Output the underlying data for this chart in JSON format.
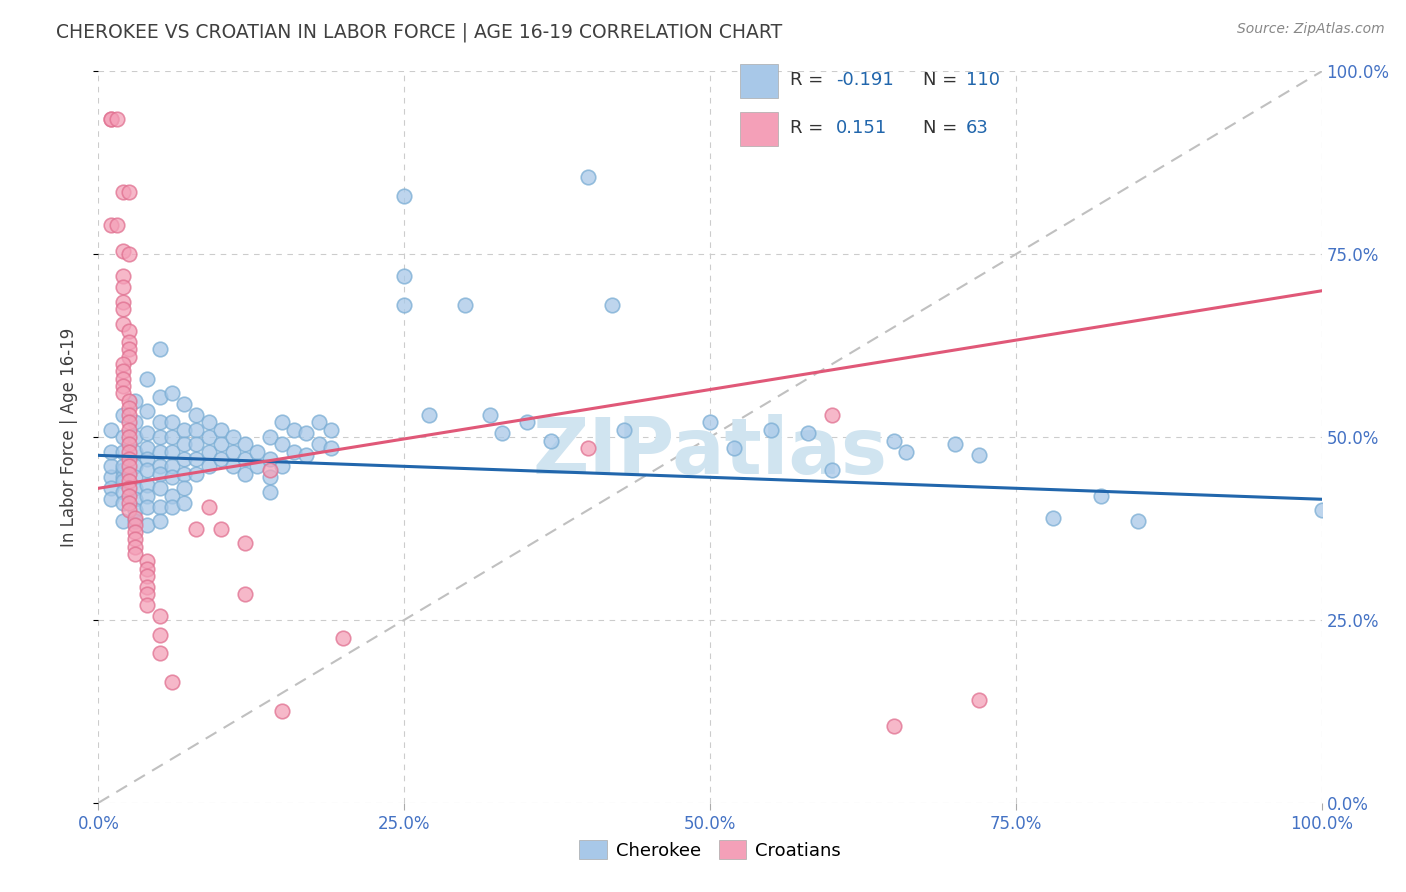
{
  "title": "CHEROKEE VS CROATIAN IN LABOR FORCE | AGE 16-19 CORRELATION CHART",
  "source": "Source: ZipAtlas.com",
  "ylabel": "In Labor Force | Age 16-19",
  "xlim": [
    0.0,
    1.0
  ],
  "ylim": [
    0.0,
    1.0
  ],
  "xticks": [
    0.0,
    0.25,
    0.5,
    0.75,
    1.0
  ],
  "yticks": [
    0.0,
    0.25,
    0.5,
    0.75,
    1.0
  ],
  "cherokee_color": "#a8c8e8",
  "cherokee_edge": "#7aadd4",
  "croatian_color": "#f4a0b8",
  "croatian_edge": "#e07090",
  "cherokee_line_color": "#2166ac",
  "croatian_line_color": "#e05878",
  "diag_color": "#c0c0c0",
  "cherokee_R": -0.191,
  "cherokee_N": 110,
  "croatian_R": 0.151,
  "croatian_N": 63,
  "legend_label_cherokee": "Cherokee",
  "legend_label_croatian": "Croatians",
  "watermark": "ZIPatlas",
  "watermark_color": "#d0e4f0",
  "background_color": "#ffffff",
  "grid_color": "#cccccc",
  "tick_color": "#4472c4",
  "title_color": "#404040",
  "source_color": "#888888",
  "legend_text_color": "#333333",
  "legend_value_color": "#2166ac",
  "cherokee_line_x": [
    0.0,
    1.0
  ],
  "cherokee_line_y": [
    0.475,
    0.415
  ],
  "croatian_line_x": [
    0.0,
    1.0
  ],
  "croatian_line_y": [
    0.43,
    0.7
  ],
  "cherokee_scatter": [
    [
      0.01,
      0.445
    ],
    [
      0.01,
      0.46
    ],
    [
      0.01,
      0.48
    ],
    [
      0.01,
      0.51
    ],
    [
      0.01,
      0.43
    ],
    [
      0.01,
      0.415
    ],
    [
      0.02,
      0.455
    ],
    [
      0.02,
      0.5
    ],
    [
      0.02,
      0.445
    ],
    [
      0.02,
      0.53
    ],
    [
      0.02,
      0.48
    ],
    [
      0.02,
      0.46
    ],
    [
      0.02,
      0.44
    ],
    [
      0.02,
      0.425
    ],
    [
      0.02,
      0.41
    ],
    [
      0.02,
      0.385
    ],
    [
      0.03,
      0.52
    ],
    [
      0.03,
      0.5
    ],
    [
      0.03,
      0.48
    ],
    [
      0.03,
      0.46
    ],
    [
      0.03,
      0.445
    ],
    [
      0.03,
      0.43
    ],
    [
      0.03,
      0.415
    ],
    [
      0.03,
      0.4
    ],
    [
      0.03,
      0.385
    ],
    [
      0.03,
      0.55
    ],
    [
      0.04,
      0.58
    ],
    [
      0.04,
      0.535
    ],
    [
      0.04,
      0.505
    ],
    [
      0.04,
      0.485
    ],
    [
      0.04,
      0.47
    ],
    [
      0.04,
      0.455
    ],
    [
      0.04,
      0.435
    ],
    [
      0.04,
      0.42
    ],
    [
      0.04,
      0.405
    ],
    [
      0.04,
      0.38
    ],
    [
      0.05,
      0.62
    ],
    [
      0.05,
      0.555
    ],
    [
      0.05,
      0.52
    ],
    [
      0.05,
      0.5
    ],
    [
      0.05,
      0.48
    ],
    [
      0.05,
      0.46
    ],
    [
      0.05,
      0.45
    ],
    [
      0.05,
      0.43
    ],
    [
      0.05,
      0.405
    ],
    [
      0.05,
      0.385
    ],
    [
      0.06,
      0.56
    ],
    [
      0.06,
      0.52
    ],
    [
      0.06,
      0.5
    ],
    [
      0.06,
      0.48
    ],
    [
      0.06,
      0.46
    ],
    [
      0.06,
      0.445
    ],
    [
      0.06,
      0.42
    ],
    [
      0.06,
      0.405
    ],
    [
      0.07,
      0.545
    ],
    [
      0.07,
      0.51
    ],
    [
      0.07,
      0.49
    ],
    [
      0.07,
      0.47
    ],
    [
      0.07,
      0.45
    ],
    [
      0.07,
      0.43
    ],
    [
      0.07,
      0.41
    ],
    [
      0.08,
      0.53
    ],
    [
      0.08,
      0.51
    ],
    [
      0.08,
      0.49
    ],
    [
      0.08,
      0.47
    ],
    [
      0.08,
      0.45
    ],
    [
      0.09,
      0.52
    ],
    [
      0.09,
      0.5
    ],
    [
      0.09,
      0.48
    ],
    [
      0.09,
      0.46
    ],
    [
      0.1,
      0.51
    ],
    [
      0.1,
      0.49
    ],
    [
      0.1,
      0.47
    ],
    [
      0.11,
      0.5
    ],
    [
      0.11,
      0.48
    ],
    [
      0.11,
      0.46
    ],
    [
      0.12,
      0.49
    ],
    [
      0.12,
      0.47
    ],
    [
      0.12,
      0.45
    ],
    [
      0.13,
      0.48
    ],
    [
      0.13,
      0.46
    ],
    [
      0.14,
      0.5
    ],
    [
      0.14,
      0.47
    ],
    [
      0.14,
      0.445
    ],
    [
      0.14,
      0.425
    ],
    [
      0.15,
      0.52
    ],
    [
      0.15,
      0.49
    ],
    [
      0.15,
      0.46
    ],
    [
      0.16,
      0.51
    ],
    [
      0.16,
      0.48
    ],
    [
      0.17,
      0.505
    ],
    [
      0.17,
      0.475
    ],
    [
      0.18,
      0.52
    ],
    [
      0.18,
      0.49
    ],
    [
      0.19,
      0.51
    ],
    [
      0.19,
      0.485
    ],
    [
      0.25,
      0.83
    ],
    [
      0.25,
      0.72
    ],
    [
      0.25,
      0.68
    ],
    [
      0.27,
      0.53
    ],
    [
      0.3,
      0.68
    ],
    [
      0.32,
      0.53
    ],
    [
      0.33,
      0.505
    ],
    [
      0.35,
      0.52
    ],
    [
      0.37,
      0.495
    ],
    [
      0.4,
      0.855
    ],
    [
      0.42,
      0.68
    ],
    [
      0.43,
      0.51
    ],
    [
      0.5,
      0.52
    ],
    [
      0.52,
      0.485
    ],
    [
      0.55,
      0.51
    ],
    [
      0.58,
      0.505
    ],
    [
      0.6,
      0.455
    ],
    [
      0.65,
      0.495
    ],
    [
      0.66,
      0.48
    ],
    [
      0.7,
      0.49
    ],
    [
      0.72,
      0.475
    ],
    [
      0.78,
      0.39
    ],
    [
      0.82,
      0.42
    ],
    [
      0.85,
      0.385
    ],
    [
      1.0,
      0.4
    ]
  ],
  "croatian_scatter": [
    [
      0.01,
      0.935
    ],
    [
      0.01,
      0.935
    ],
    [
      0.015,
      0.935
    ],
    [
      0.02,
      0.835
    ],
    [
      0.025,
      0.835
    ],
    [
      0.01,
      0.79
    ],
    [
      0.015,
      0.79
    ],
    [
      0.02,
      0.755
    ],
    [
      0.025,
      0.75
    ],
    [
      0.02,
      0.72
    ],
    [
      0.02,
      0.705
    ],
    [
      0.02,
      0.685
    ],
    [
      0.02,
      0.675
    ],
    [
      0.02,
      0.655
    ],
    [
      0.025,
      0.645
    ],
    [
      0.025,
      0.63
    ],
    [
      0.025,
      0.62
    ],
    [
      0.025,
      0.61
    ],
    [
      0.02,
      0.6
    ],
    [
      0.02,
      0.59
    ],
    [
      0.02,
      0.58
    ],
    [
      0.02,
      0.57
    ],
    [
      0.02,
      0.56
    ],
    [
      0.025,
      0.55
    ],
    [
      0.025,
      0.54
    ],
    [
      0.025,
      0.53
    ],
    [
      0.025,
      0.52
    ],
    [
      0.025,
      0.51
    ],
    [
      0.025,
      0.5
    ],
    [
      0.025,
      0.49
    ],
    [
      0.025,
      0.48
    ],
    [
      0.025,
      0.47
    ],
    [
      0.025,
      0.46
    ],
    [
      0.025,
      0.45
    ],
    [
      0.025,
      0.44
    ],
    [
      0.025,
      0.43
    ],
    [
      0.025,
      0.42
    ],
    [
      0.025,
      0.41
    ],
    [
      0.025,
      0.4
    ],
    [
      0.03,
      0.39
    ],
    [
      0.03,
      0.38
    ],
    [
      0.03,
      0.37
    ],
    [
      0.03,
      0.36
    ],
    [
      0.03,
      0.35
    ],
    [
      0.03,
      0.34
    ],
    [
      0.04,
      0.33
    ],
    [
      0.04,
      0.32
    ],
    [
      0.04,
      0.31
    ],
    [
      0.04,
      0.295
    ],
    [
      0.04,
      0.285
    ],
    [
      0.04,
      0.27
    ],
    [
      0.05,
      0.255
    ],
    [
      0.05,
      0.23
    ],
    [
      0.05,
      0.205
    ],
    [
      0.06,
      0.165
    ],
    [
      0.08,
      0.375
    ],
    [
      0.09,
      0.405
    ],
    [
      0.1,
      0.375
    ],
    [
      0.12,
      0.355
    ],
    [
      0.12,
      0.285
    ],
    [
      0.14,
      0.455
    ],
    [
      0.15,
      0.125
    ],
    [
      0.2,
      0.225
    ],
    [
      0.4,
      0.485
    ],
    [
      0.6,
      0.53
    ],
    [
      0.65,
      0.105
    ],
    [
      0.72,
      0.14
    ]
  ]
}
